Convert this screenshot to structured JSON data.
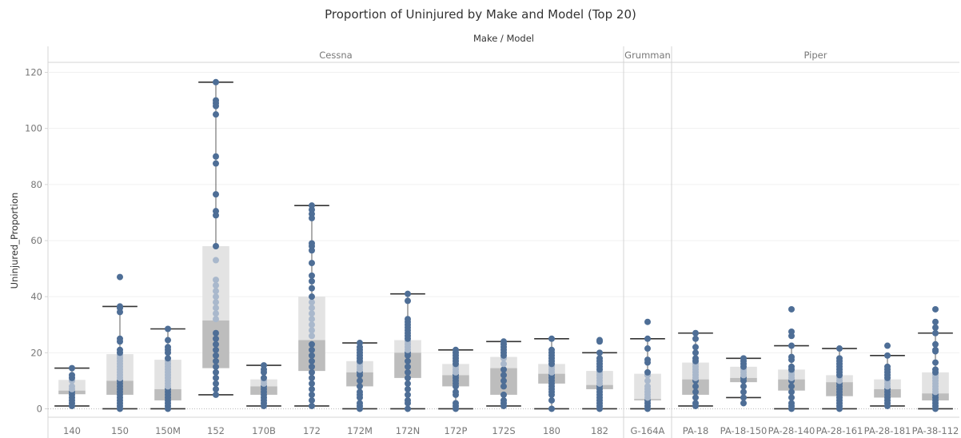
{
  "chart_data": {
    "type": "box-plot",
    "title": "Proportion of Uninjured by Make and Model (Top 20)",
    "xlabel": "Make / Model",
    "ylabel": "Uninjured_Proportion",
    "ylim": [
      -3,
      123
    ],
    "yticks": [
      0,
      20,
      40,
      60,
      80,
      100,
      120
    ],
    "grid": true,
    "colors": {
      "point": "#4e6e96",
      "point_inner": "#a9b8cc",
      "box_upper": "#e3e3e3",
      "box_lower": "#bdbdbd",
      "whisker": "#333333"
    },
    "groups": [
      {
        "name": "Cessna",
        "models": [
          "140",
          "150",
          "150M",
          "152",
          "170B",
          "172",
          "172M",
          "172N",
          "172P",
          "172S",
          "180",
          "182"
        ]
      },
      {
        "name": "Grumman",
        "models": [
          "G-164A"
        ]
      },
      {
        "name": "Piper",
        "models": [
          "PA-18",
          "PA-18-150",
          "PA-28-140",
          "PA-28-161",
          "PA-28-181",
          "PA-38-112"
        ]
      }
    ],
    "series": [
      {
        "model": "140",
        "min": 1,
        "q1": 5.2,
        "median": 6.5,
        "q3": 10.3,
        "max": 14.5,
        "points": [
          1,
          2,
          3,
          4,
          5,
          6,
          7,
          8,
          10,
          11,
          12,
          14.5
        ]
      },
      {
        "model": "150",
        "min": 0,
        "q1": 5,
        "median": 10,
        "q3": 19.5,
        "max": 36.5,
        "points": [
          0,
          1,
          2,
          3,
          4,
          5,
          6,
          7,
          8,
          9,
          10,
          11,
          12,
          13,
          14,
          15,
          16,
          17,
          18,
          19,
          20,
          21,
          24,
          25,
          34.5,
          36,
          36.5,
          47
        ]
      },
      {
        "model": "150M",
        "min": 0,
        "q1": 3,
        "median": 7,
        "q3": 17.5,
        "max": 28.5,
        "points": [
          0,
          1,
          2,
          3,
          4,
          5,
          6,
          7,
          8,
          9,
          10,
          11,
          12,
          13,
          14,
          15,
          16,
          17,
          18,
          20,
          21,
          22,
          24.5,
          28.5
        ]
      },
      {
        "model": "152",
        "min": 5,
        "q1": 14.5,
        "median": 31.5,
        "q3": 58,
        "max": 116.5,
        "points": [
          5,
          7,
          9,
          11,
          13,
          15,
          17,
          19,
          21,
          23,
          25,
          27,
          32,
          34,
          36,
          38,
          40,
          42,
          44,
          46,
          53,
          58,
          69,
          70.5,
          76.5,
          87.5,
          90,
          105,
          108,
          109,
          110,
          116.5
        ]
      },
      {
        "model": "170B",
        "min": 1,
        "q1": 5,
        "median": 8,
        "q3": 10.5,
        "max": 15.5,
        "points": [
          1,
          2,
          3,
          4,
          5,
          6,
          7,
          8,
          9,
          10,
          11,
          13,
          14,
          15.5
        ]
      },
      {
        "model": "172",
        "min": 1,
        "q1": 13.5,
        "median": 24.5,
        "q3": 40,
        "max": 72.5,
        "points": [
          1,
          3,
          5,
          7,
          9,
          11,
          13,
          15,
          17,
          19,
          21,
          23,
          26,
          28,
          30,
          32,
          34,
          36,
          38,
          40,
          43,
          45.5,
          47.5,
          52,
          56.5,
          58,
          59,
          68,
          69.5,
          71,
          72.5
        ]
      },
      {
        "model": "172M",
        "min": 0,
        "q1": 8,
        "median": 13,
        "q3": 17,
        "max": 23.5,
        "points": [
          0,
          1,
          2,
          4,
          5,
          6,
          8,
          10,
          12,
          13,
          14,
          15,
          16,
          17,
          18,
          19,
          20,
          21,
          22,
          23.5
        ]
      },
      {
        "model": "172N",
        "min": 0,
        "q1": 11,
        "median": 20,
        "q3": 24.5,
        "max": 41,
        "points": [
          0,
          2,
          3,
          5,
          7,
          9,
          11,
          13,
          15,
          17,
          19,
          20,
          21,
          22,
          23,
          24,
          25,
          26,
          27,
          28,
          29,
          30,
          31,
          32,
          38.5,
          41
        ]
      },
      {
        "model": "172P",
        "min": 0,
        "q1": 8,
        "median": 12,
        "q3": 16,
        "max": 21,
        "points": [
          0,
          1,
          2,
          5,
          6,
          8,
          9,
          10,
          11,
          12,
          13,
          14,
          15,
          16,
          17,
          18,
          19,
          20,
          21
        ]
      },
      {
        "model": "172S",
        "min": 1,
        "q1": 5,
        "median": 14.5,
        "q3": 18.5,
        "max": 24,
        "points": [
          1,
          2,
          3,
          5,
          8,
          10,
          12,
          14,
          16,
          18,
          19,
          20,
          21,
          22,
          23,
          24
        ]
      },
      {
        "model": "180",
        "min": 0,
        "q1": 9,
        "median": 12.5,
        "q3": 16,
        "max": 25,
        "points": [
          0,
          3,
          5,
          6,
          7,
          8,
          9,
          10,
          11,
          12,
          13,
          14,
          15,
          16,
          17,
          18,
          19,
          20,
          21,
          25
        ]
      },
      {
        "model": "182",
        "min": 0,
        "q1": 7,
        "median": 8.5,
        "q3": 13.5,
        "max": 20,
        "points": [
          0,
          1,
          2,
          3,
          4,
          5,
          6,
          7,
          8,
          9,
          10,
          11,
          12,
          13,
          14,
          15,
          16,
          17,
          18,
          20,
          24,
          24.5
        ]
      },
      {
        "model": "G-164A",
        "min": 0,
        "q1": 3,
        "median": 3.5,
        "q3": 12.5,
        "max": 25,
        "points": [
          0,
          1,
          2,
          3,
          4,
          5,
          6,
          7,
          8,
          10,
          12,
          13,
          16.5,
          17.5,
          21.5,
          25,
          31
        ]
      },
      {
        "model": "PA-18",
        "min": 1,
        "q1": 5,
        "median": 10.5,
        "q3": 16.5,
        "max": 27,
        "points": [
          1,
          2,
          4,
          6,
          8,
          10,
          11,
          12,
          13,
          14,
          15,
          16,
          17,
          18,
          20,
          22,
          25,
          27
        ]
      },
      {
        "model": "PA-18-150",
        "min": 4,
        "q1": 9.5,
        "median": 11,
        "q3": 15,
        "max": 18,
        "points": [
          2,
          4,
          6,
          8,
          10,
          11,
          12,
          13,
          14,
          15,
          16,
          17,
          18
        ]
      },
      {
        "model": "PA-28-140",
        "min": 0,
        "q1": 6.5,
        "median": 10.5,
        "q3": 14,
        "max": 22.5,
        "points": [
          0,
          1,
          2,
          4,
          6,
          8,
          10,
          11,
          12,
          13,
          14,
          15,
          17.5,
          18.5,
          22.5,
          26,
          27.5,
          35.5
        ]
      },
      {
        "model": "PA-28-161",
        "min": 0,
        "q1": 4.5,
        "median": 9.5,
        "q3": 12,
        "max": 21.5,
        "points": [
          0,
          1,
          2,
          3,
          4,
          5,
          6,
          7,
          8,
          9,
          10,
          11,
          12,
          13,
          14,
          15,
          16,
          17,
          18,
          21.5
        ]
      },
      {
        "model": "PA-28-181",
        "min": 1,
        "q1": 4,
        "median": 7,
        "q3": 10.5,
        "max": 19,
        "points": [
          1,
          2,
          3,
          4,
          5,
          6,
          7,
          8,
          9,
          10,
          11,
          12,
          13,
          14,
          15,
          19,
          22.5
        ]
      },
      {
        "model": "PA-38-112",
        "min": 0,
        "q1": 3,
        "median": 5.5,
        "q3": 13,
        "max": 27,
        "points": [
          0,
          1,
          2,
          3,
          4,
          5,
          6,
          7,
          8,
          9,
          10,
          11,
          12,
          13,
          14,
          16.5,
          20.5,
          21,
          23,
          27,
          29,
          31,
          35.5
        ]
      }
    ]
  }
}
